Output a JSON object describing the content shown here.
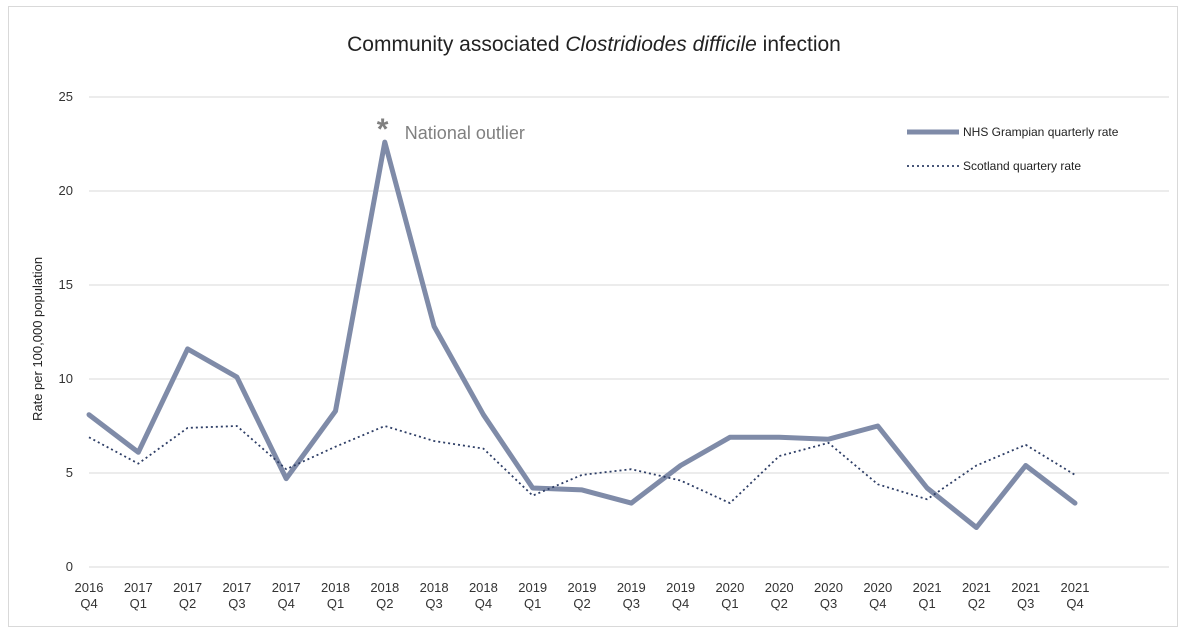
{
  "chart_data": {
    "type": "line",
    "title_parts": [
      {
        "text": "Community associated ",
        "italic": false
      },
      {
        "text": "Clostridiodes difficile",
        "italic": true
      },
      {
        "text": " infection",
        "italic": false
      }
    ],
    "ylabel": "Rate per 100,000 population",
    "xlabel": "",
    "ylim": [
      0,
      25
    ],
    "yticks": [
      0,
      5,
      10,
      15,
      20,
      25
    ],
    "grid": true,
    "legend_position": "top-right",
    "categories": [
      [
        "2016",
        "Q4"
      ],
      [
        "2017",
        "Q1"
      ],
      [
        "2017",
        "Q2"
      ],
      [
        "2017",
        "Q3"
      ],
      [
        "2017",
        "Q4"
      ],
      [
        "2018",
        "Q1"
      ],
      [
        "2018",
        "Q2"
      ],
      [
        "2018",
        "Q3"
      ],
      [
        "2018",
        "Q4"
      ],
      [
        "2019",
        "Q1"
      ],
      [
        "2019",
        "Q2"
      ],
      [
        "2019",
        "Q3"
      ],
      [
        "2019",
        "Q4"
      ],
      [
        "2020",
        "Q1"
      ],
      [
        "2020",
        "Q2"
      ],
      [
        "2020",
        "Q3"
      ],
      [
        "2020",
        "Q4"
      ],
      [
        "2021",
        "Q1"
      ],
      [
        "2021",
        "Q2"
      ],
      [
        "2021",
        "Q3"
      ],
      [
        "2021",
        "Q4"
      ]
    ],
    "series": [
      {
        "name": "NHS Grampian quarterly rate",
        "style": "solid",
        "color": "#7f8ba8",
        "values": [
          8.1,
          6.1,
          11.6,
          10.1,
          4.7,
          8.3,
          22.6,
          12.8,
          8.1,
          4.2,
          4.1,
          3.4,
          5.4,
          6.9,
          6.9,
          6.8,
          7.5,
          4.2,
          2.1,
          5.4,
          3.4
        ]
      },
      {
        "name": "Scotland quartery rate",
        "style": "dotted",
        "color": "#2e3e66",
        "values": [
          6.9,
          5.5,
          7.4,
          7.5,
          5.2,
          6.4,
          7.5,
          6.7,
          6.3,
          3.8,
          4.9,
          5.2,
          4.6,
          3.4,
          5.9,
          6.6,
          4.4,
          3.6,
          5.4,
          6.5,
          4.9
        ]
      }
    ],
    "annotations": [
      {
        "star": "*",
        "text": "National outlier",
        "category_index": 6,
        "color": "#808080"
      }
    ]
  }
}
